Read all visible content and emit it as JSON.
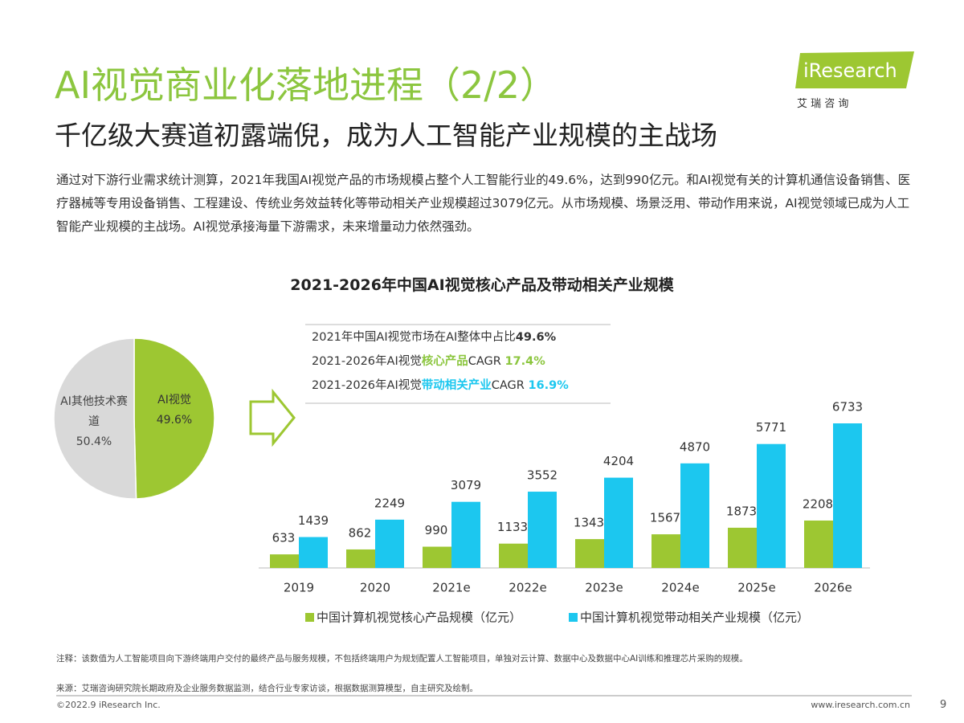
{
  "header": {
    "title": "AI视觉商业化落地进程（2/2）",
    "subtitle": "千亿级大赛道初露端倪，成为人工智能产业规模的主战场",
    "logo": "iResearch",
    "logo_sub": "艾 瑞 咨 询"
  },
  "body": "通过对下游行业需求统计测算，2021年我国AI视觉产品的市场规模占整个人工智能行业的49.6%，达到990亿元。和AI视觉有关的计算机通信设备销售、医疗器械等专用设备销售、工程建设、传统业务效益转化等带动相关产业规模超过3079亿元。从市场规模、场景泛用、带动作用来说，AI视觉领域已成为人工智能产业规模的主战场。AI视觉承接海量下游需求，未来增量动力依然强劲。",
  "chart_data": [
    {
      "type": "pie",
      "categories": [
        "AI视觉",
        "AI其他技术赛道"
      ],
      "values": [
        49.6,
        50.4
      ],
      "value_labels": [
        "49.6%",
        "50.4%"
      ],
      "colors": [
        "#9dc732",
        "#d9d9d9"
      ]
    },
    {
      "type": "bar",
      "title": "2021-2026年中国AI视觉核心产品及带动相关产业规模",
      "categories": [
        "2019",
        "2020",
        "2021e",
        "2022e",
        "2023e",
        "2024e",
        "2025e",
        "2026e"
      ],
      "series": [
        {
          "name": "中国计算机视觉核心产品规模（亿元）",
          "color": "#9dc732",
          "values": [
            633,
            862,
            990,
            1133,
            1343,
            1567,
            1873,
            2208
          ]
        },
        {
          "name": "中国计算机视觉带动相关产业规模（亿元）",
          "color": "#1cc7ef",
          "values": [
            1439,
            2249,
            3079,
            3552,
            4204,
            4870,
            5771,
            6733
          ]
        }
      ],
      "annotations": [
        [
          "2021年中国AI视觉市场在AI整体中占比",
          "49.6%"
        ],
        [
          "2021-2026年AI视觉",
          "核心产品",
          "CAGR ",
          "17.4%"
        ],
        [
          "2021-2026年AI视觉",
          "带动相关产业",
          "CAGR ",
          "16.9%"
        ]
      ]
    }
  ],
  "footer": {
    "note": "注释：该数值为人工智能项目向下游终端用户交付的最终产品与服务规模，不包括终端用户为规划配置人工智能项目，单独对云计算、数据中心及数据中心AI训练和推理芯片采购的规模。",
    "source": "来源：艾瑞咨询研究院长期政府及企业服务数据监测，结合行业专家访谈，根据数据测算模型，自主研究及绘制。",
    "copyright": "©2022.9 iResearch Inc.",
    "url": "www.iresearch.com.cn",
    "page": 9
  }
}
